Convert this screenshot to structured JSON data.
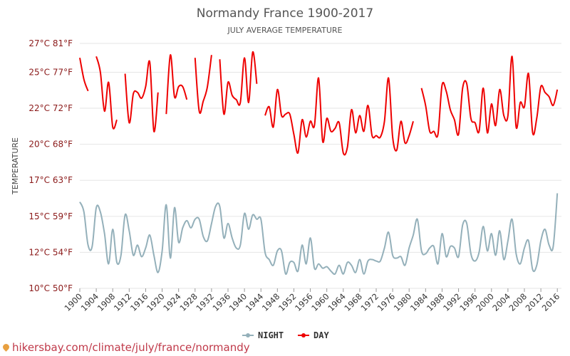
{
  "chart_data": {
    "type": "line",
    "title": "Normandy France 1900-2017",
    "subtitle": "JULY AVERAGE TEMPERATURE",
    "ylabel": "TEMPERATURE",
    "ylim": [
      10,
      27
    ],
    "y_ticks": [
      {
        "value": 10,
        "label": "10°C 50°F"
      },
      {
        "value": 12.5,
        "label": "12°C 54°F"
      },
      {
        "value": 15,
        "label": "15°C 59°F"
      },
      {
        "value": 17.5,
        "label": "17°C 63°F"
      },
      {
        "value": 20,
        "label": "20°C 68°F"
      },
      {
        "value": 22.5,
        "label": "22°C 72°F"
      },
      {
        "value": 25,
        "label": "25°C 77°F"
      },
      {
        "value": 27.5,
        "label": "27°C 81°F"
      }
    ],
    "x_ticks": [
      1900,
      1904,
      1908,
      1912,
      1916,
      1920,
      1924,
      1928,
      1932,
      1936,
      1940,
      1944,
      1948,
      1952,
      1956,
      1960,
      1964,
      1968,
      1972,
      1976,
      1980,
      1984,
      1988,
      1992,
      1996,
      2000,
      2004,
      2008,
      2012,
      2016
    ],
    "xlim": [
      1900,
      2017
    ],
    "grid": true,
    "legend_position": "bottom-center",
    "series": [
      {
        "name": "NIGHT",
        "color": "#94b0ba",
        "points": [
          [
            1900,
            16.0
          ],
          [
            1901,
            15.3
          ],
          [
            1902,
            13.0
          ],
          [
            1903,
            12.9
          ],
          [
            1904,
            15.6
          ],
          [
            1905,
            15.3
          ],
          [
            1906,
            13.8
          ],
          [
            1907,
            11.7
          ],
          [
            1908,
            14.1
          ],
          [
            1909,
            11.8
          ],
          [
            1910,
            12.3
          ],
          [
            1911,
            15.1
          ],
          [
            1912,
            14.0
          ],
          [
            1913,
            12.3
          ],
          [
            1914,
            13.0
          ],
          [
            1915,
            12.2
          ],
          [
            1916,
            12.8
          ],
          [
            1917,
            13.7
          ],
          [
            1918,
            12.3
          ],
          [
            1919,
            11.1
          ],
          [
            1920,
            12.6
          ],
          [
            1921,
            15.8
          ],
          [
            1922,
            12.1
          ],
          [
            1923,
            15.6
          ],
          [
            1924,
            13.2
          ],
          [
            1925,
            14.2
          ],
          [
            1926,
            14.7
          ],
          [
            1927,
            14.2
          ],
          [
            1928,
            14.8
          ],
          [
            1929,
            14.8
          ],
          [
            1930,
            13.6
          ],
          [
            1931,
            13.3
          ],
          [
            1932,
            14.5
          ],
          [
            1933,
            15.7
          ],
          [
            1934,
            15.7
          ],
          [
            1935,
            13.5
          ],
          [
            1936,
            14.5
          ],
          [
            1937,
            13.5
          ],
          [
            1938,
            12.8
          ],
          [
            1939,
            13.0
          ],
          [
            1940,
            15.2
          ],
          [
            1941,
            14.1
          ],
          [
            1942,
            15.1
          ],
          [
            1943,
            14.8
          ],
          [
            1944,
            14.8
          ],
          [
            1945,
            12.5
          ],
          [
            1946,
            12.0
          ],
          [
            1947,
            11.6
          ],
          [
            1948,
            12.6
          ],
          [
            1949,
            12.6
          ],
          [
            1950,
            11.0
          ],
          [
            1951,
            11.8
          ],
          [
            1952,
            11.8
          ],
          [
            1953,
            11.2
          ],
          [
            1954,
            13.0
          ],
          [
            1955,
            11.7
          ],
          [
            1956,
            13.5
          ],
          [
            1957,
            11.4
          ],
          [
            1958,
            11.7
          ],
          [
            1959,
            11.4
          ],
          [
            1960,
            11.5
          ],
          [
            1961,
            11.2
          ],
          [
            1962,
            11.0
          ],
          [
            1963,
            11.6
          ],
          [
            1964,
            11.0
          ],
          [
            1965,
            11.8
          ],
          [
            1966,
            11.6
          ],
          [
            1967,
            11.1
          ],
          [
            1968,
            12.0
          ],
          [
            1969,
            11.0
          ],
          [
            1970,
            11.9
          ],
          [
            1971,
            12.0
          ],
          [
            1972,
            11.9
          ],
          [
            1973,
            11.9
          ],
          [
            1974,
            12.8
          ],
          [
            1975,
            13.9
          ],
          [
            1976,
            12.3
          ],
          [
            1977,
            12.1
          ],
          [
            1978,
            12.2
          ],
          [
            1979,
            11.6
          ],
          [
            1980,
            12.8
          ],
          [
            1981,
            13.7
          ],
          [
            1982,
            14.8
          ],
          [
            1983,
            12.6
          ],
          [
            1984,
            12.4
          ],
          [
            1985,
            12.8
          ],
          [
            1986,
            12.9
          ],
          [
            1987,
            11.7
          ],
          [
            1988,
            13.8
          ],
          [
            1989,
            12.2
          ],
          [
            1990,
            12.9
          ],
          [
            1991,
            12.8
          ],
          [
            1992,
            12.2
          ],
          [
            1993,
            14.4
          ],
          [
            1994,
            14.5
          ],
          [
            1995,
            12.4
          ],
          [
            1996,
            11.9
          ],
          [
            1997,
            12.5
          ],
          [
            1998,
            14.3
          ],
          [
            1999,
            12.6
          ],
          [
            2000,
            13.8
          ],
          [
            2001,
            12.3
          ],
          [
            2002,
            14.0
          ],
          [
            2003,
            12.0
          ],
          [
            2004,
            13.3
          ],
          [
            2005,
            14.8
          ],
          [
            2006,
            12.4
          ],
          [
            2007,
            11.7
          ],
          [
            2008,
            12.8
          ],
          [
            2009,
            13.3
          ],
          [
            2010,
            11.3
          ],
          [
            2011,
            11.6
          ],
          [
            2012,
            13.3
          ],
          [
            2013,
            14.1
          ],
          [
            2014,
            13.0
          ],
          [
            2015,
            12.9
          ],
          [
            2016,
            16.6
          ]
        ]
      },
      {
        "name": "DAY",
        "color": "#ee0000",
        "points": [
          [
            1900,
            26.0
          ],
          [
            1901,
            24.5
          ],
          [
            1902,
            23.7
          ],
          [
            1903,
            null
          ],
          [
            1904,
            26.1
          ],
          [
            1905,
            25.0
          ],
          [
            1906,
            22.3
          ],
          [
            1907,
            24.3
          ],
          [
            1908,
            21.2
          ],
          [
            1909,
            21.7
          ],
          [
            1910,
            null
          ],
          [
            1911,
            24.9
          ],
          [
            1912,
            21.5
          ],
          [
            1913,
            23.5
          ],
          [
            1914,
            23.6
          ],
          [
            1915,
            23.2
          ],
          [
            1916,
            24.0
          ],
          [
            1917,
            25.7
          ],
          [
            1918,
            20.9
          ],
          [
            1919,
            23.6
          ],
          [
            1920,
            null
          ],
          [
            1921,
            22.1
          ],
          [
            1922,
            26.2
          ],
          [
            1923,
            23.3
          ],
          [
            1924,
            24.0
          ],
          [
            1925,
            24.0
          ],
          [
            1926,
            23.1
          ],
          [
            1927,
            null
          ],
          [
            1928,
            26.0
          ],
          [
            1929,
            22.3
          ],
          [
            1930,
            23.0
          ],
          [
            1931,
            24.0
          ],
          [
            1932,
            26.2
          ],
          [
            1933,
            null
          ],
          [
            1934,
            25.9
          ],
          [
            1935,
            22.1
          ],
          [
            1936,
            24.3
          ],
          [
            1937,
            23.4
          ],
          [
            1938,
            23.1
          ],
          [
            1939,
            22.9
          ],
          [
            1940,
            26.0
          ],
          [
            1941,
            22.9
          ],
          [
            1942,
            26.4
          ],
          [
            1943,
            24.2
          ],
          [
            1944,
            null
          ],
          [
            1945,
            22.0
          ],
          [
            1946,
            22.6
          ],
          [
            1947,
            21.2
          ],
          [
            1948,
            23.8
          ],
          [
            1949,
            22.0
          ],
          [
            1950,
            22.1
          ],
          [
            1951,
            22.1
          ],
          [
            1952,
            20.7
          ],
          [
            1953,
            19.4
          ],
          [
            1954,
            21.7
          ],
          [
            1955,
            20.5
          ],
          [
            1956,
            21.6
          ],
          [
            1957,
            21.3
          ],
          [
            1958,
            24.6
          ],
          [
            1959,
            20.2
          ],
          [
            1960,
            21.8
          ],
          [
            1961,
            20.9
          ],
          [
            1962,
            21.1
          ],
          [
            1963,
            21.5
          ],
          [
            1964,
            19.4
          ],
          [
            1965,
            19.8
          ],
          [
            1966,
            22.4
          ],
          [
            1967,
            20.8
          ],
          [
            1968,
            22.0
          ],
          [
            1969,
            20.9
          ],
          [
            1970,
            22.7
          ],
          [
            1971,
            20.6
          ],
          [
            1972,
            20.6
          ],
          [
            1973,
            20.5
          ],
          [
            1974,
            21.6
          ],
          [
            1975,
            24.6
          ],
          [
            1976,
            20.5
          ],
          [
            1977,
            19.6
          ],
          [
            1978,
            21.6
          ],
          [
            1979,
            20.1
          ],
          [
            1980,
            20.6
          ],
          [
            1981,
            21.6
          ],
          [
            1982,
            null
          ],
          [
            1983,
            23.9
          ],
          [
            1984,
            22.7
          ],
          [
            1985,
            20.9
          ],
          [
            1986,
            20.9
          ],
          [
            1987,
            20.7
          ],
          [
            1988,
            24.1
          ],
          [
            1989,
            23.7
          ],
          [
            1990,
            22.4
          ],
          [
            1991,
            21.7
          ],
          [
            1992,
            20.7
          ],
          [
            1993,
            23.9
          ],
          [
            1994,
            24.2
          ],
          [
            1995,
            21.8
          ],
          [
            1996,
            21.5
          ],
          [
            1997,
            20.9
          ],
          [
            1998,
            23.9
          ],
          [
            1999,
            20.8
          ],
          [
            2000,
            22.8
          ],
          [
            2001,
            21.3
          ],
          [
            2002,
            23.8
          ],
          [
            2003,
            22.0
          ],
          [
            2004,
            22.0
          ],
          [
            2005,
            26.1
          ],
          [
            2006,
            21.2
          ],
          [
            2007,
            22.9
          ],
          [
            2008,
            22.6
          ],
          [
            2009,
            24.9
          ],
          [
            2010,
            20.8
          ],
          [
            2011,
            21.8
          ],
          [
            2012,
            24.0
          ],
          [
            2013,
            23.6
          ],
          [
            2014,
            23.3
          ],
          [
            2015,
            22.7
          ],
          [
            2016,
            23.8
          ]
        ]
      }
    ]
  },
  "watermark": {
    "text": "hikersbay.com/climate/july/france/normandy",
    "icon": "map-pin-icon"
  }
}
